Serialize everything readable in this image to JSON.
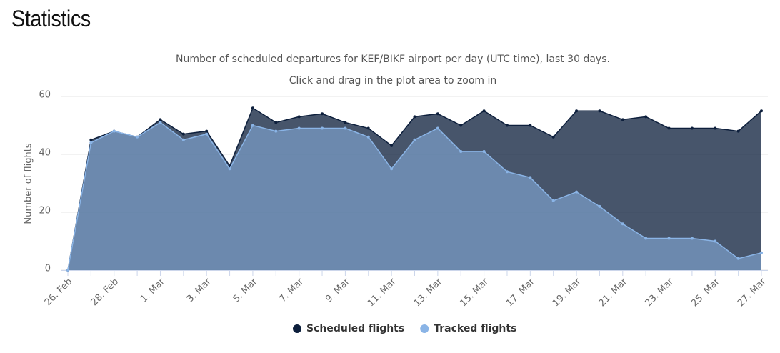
{
  "page_title": "Statistics",
  "chart_data": {
    "type": "area",
    "title": "Number of scheduled departures for KEF/BIKF airport per day (UTC time), last 30 days.",
    "subtitle": "Click and drag in the plot area to zoom in",
    "y_label": "Number of flights",
    "categories": [
      "26. Feb",
      null,
      "28. Feb",
      null,
      "1. Mar",
      null,
      "3. Mar",
      null,
      "5. Mar",
      null,
      "7. Mar",
      null,
      "9. Mar",
      null,
      "11. Mar",
      null,
      "13. Mar",
      null,
      "15. Mar",
      null,
      "17. Mar",
      null,
      "19. Mar",
      null,
      "21. Mar",
      null,
      "23. Mar",
      null,
      "25. Mar",
      null,
      "27. Mar"
    ],
    "series": [
      {
        "name": "Scheduled flights",
        "color": "#0d1f3c",
        "values": [
          0,
          45,
          48,
          46,
          52,
          47,
          48,
          36,
          56,
          51,
          53,
          54,
          51,
          49,
          43,
          53,
          54,
          50,
          55,
          50,
          50,
          46,
          55,
          55,
          52,
          53,
          49,
          49,
          49,
          48,
          55
        ]
      },
      {
        "name": "Tracked flights",
        "color": "#8ab4e6",
        "values": [
          0,
          44,
          48,
          46,
          51,
          45,
          47,
          35,
          50,
          48,
          49,
          49,
          49,
          46,
          35,
          45,
          49,
          41,
          41,
          34,
          32,
          24,
          27,
          22,
          16,
          11,
          11,
          11,
          10,
          4,
          6
        ]
      }
    ],
    "ylim": [
      0,
      60
    ],
    "yticks": [
      0,
      20,
      40,
      60
    ],
    "grid": true
  }
}
